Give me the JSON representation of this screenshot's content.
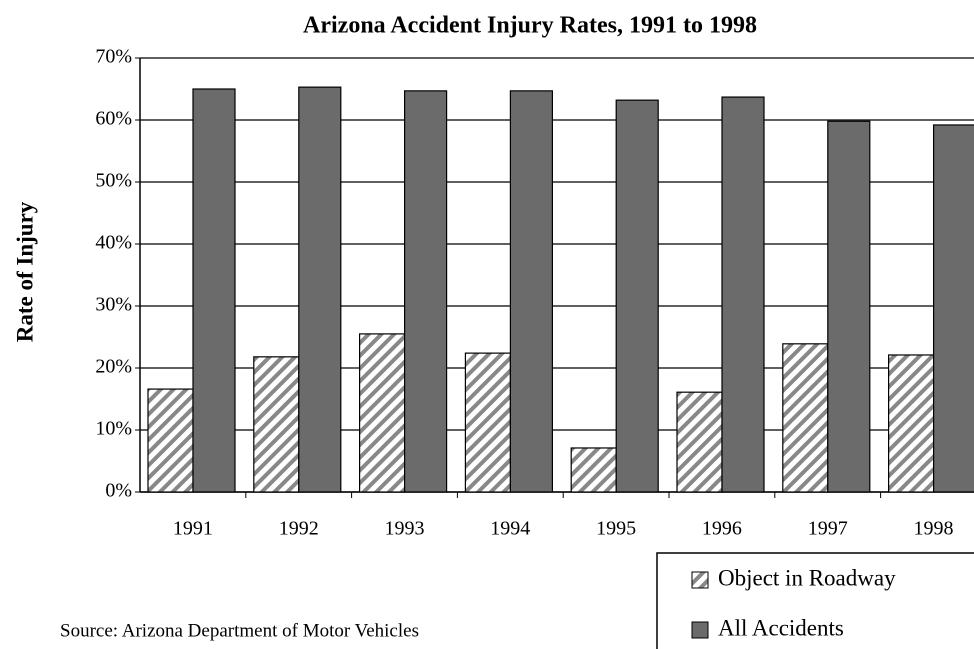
{
  "chart_data": {
    "type": "bar",
    "title": "Arizona Accident Injury Rates, 1991 to 1998",
    "y_label": "Rate of Injury",
    "source": "Source: Arizona Department of Motor Vehicles",
    "categories": [
      "1991",
      "1992",
      "1993",
      "1994",
      "1995",
      "1996",
      "1997",
      "1998"
    ],
    "series": [
      {
        "name": "Object in Roadway",
        "color": "#888888",
        "pattern": "hatch",
        "values": [
          16.6,
          21.8,
          25.5,
          22.4,
          7.1,
          16.1,
          23.9,
          22.1
        ]
      },
      {
        "name": "All Accidents",
        "color": "#6b6b6b",
        "values": [
          65.0,
          65.3,
          64.7,
          64.7,
          63.2,
          63.7,
          59.8,
          59.2
        ]
      }
    ],
    "ylim": [
      0,
      70
    ],
    "yticks": [
      {
        "value": 0,
        "label": "0%"
      },
      {
        "value": 10,
        "label": "10%"
      },
      {
        "value": 20,
        "label": "20%"
      },
      {
        "value": 30,
        "label": "30%"
      },
      {
        "value": 40,
        "label": "40%"
      },
      {
        "value": 50,
        "label": "50%"
      },
      {
        "value": 60,
        "label": "60%"
      },
      {
        "value": 70,
        "label": "70%"
      }
    ],
    "grid": true,
    "legend": "bottom-right"
  }
}
